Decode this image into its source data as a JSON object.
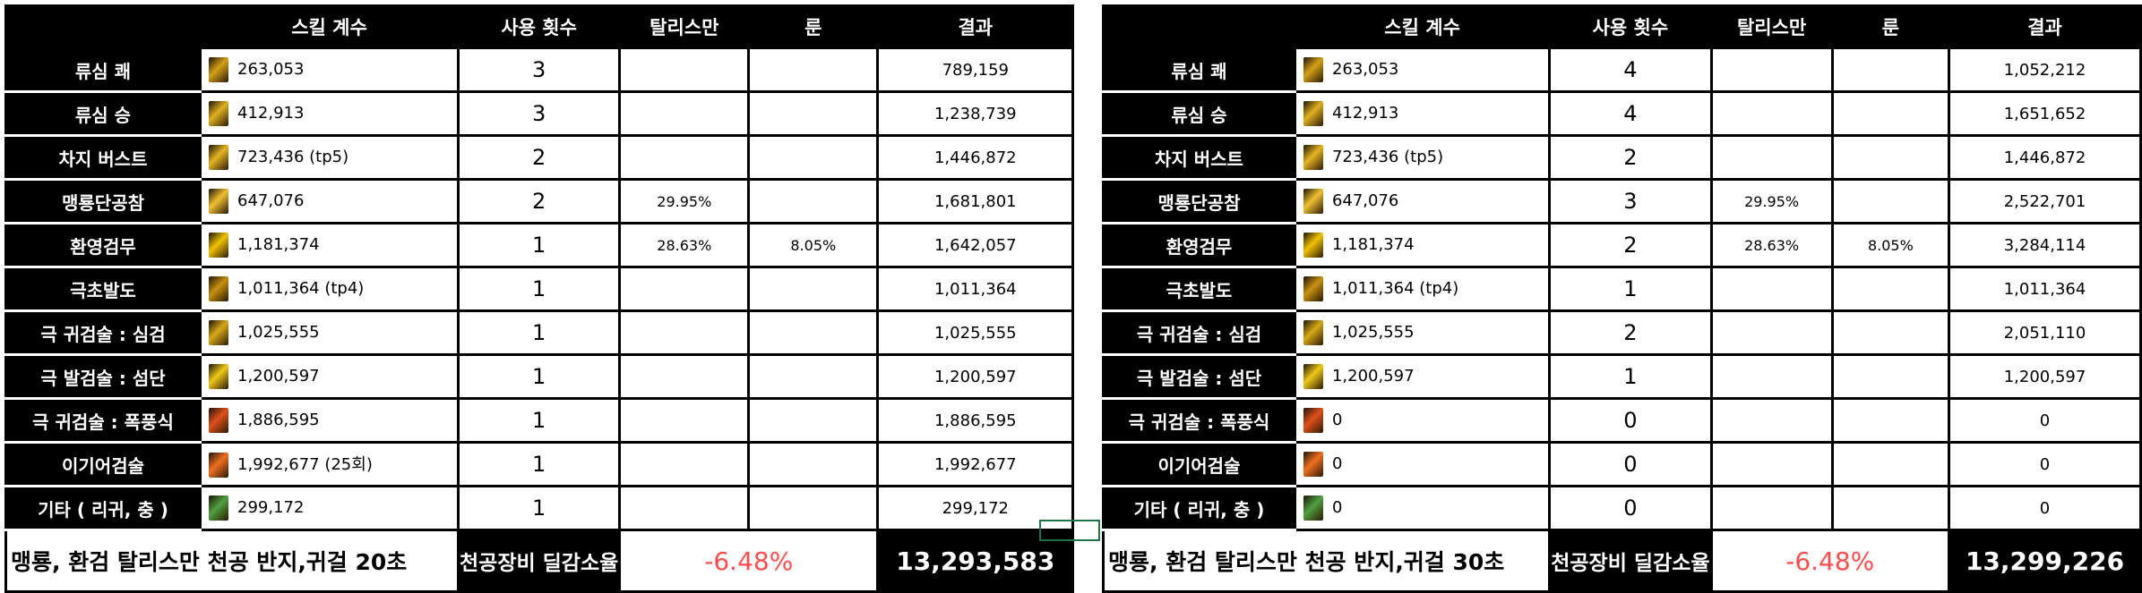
{
  "headers": [
    "",
    "스킬 계수",
    "사용 횟수",
    "탈리스만",
    "룬",
    "결과"
  ],
  "icons": [
    {
      "name": "ryusim-kwae-icon",
      "color": "#d4a017"
    },
    {
      "name": "ryusim-seung-icon",
      "color": "#e0b020"
    },
    {
      "name": "charge-burst-icon",
      "color": "#e6b422"
    },
    {
      "name": "maengryong-icon",
      "color": "#f0c030"
    },
    {
      "name": "hwanyeong-icon",
      "color": "#f2c200"
    },
    {
      "name": "geukcho-icon",
      "color": "#c89010"
    },
    {
      "name": "simgeom-icon",
      "color": "#d8a818"
    },
    {
      "name": "seomdan-icon",
      "color": "#f0c818"
    },
    {
      "name": "pokpungsik-icon",
      "color": "#e0501a"
    },
    {
      "name": "igieo-icon",
      "color": "#f07020"
    },
    {
      "name": "etc-icon",
      "color": "#50a040"
    }
  ],
  "tables": [
    {
      "rows": [
        {
          "label": "류심 쾌",
          "coef": "263,053",
          "count": "3",
          "talisman": "",
          "rune": "",
          "result": "789,159"
        },
        {
          "label": "류심 승",
          "coef": "412,913",
          "count": "3",
          "talisman": "",
          "rune": "",
          "result": "1,238,739"
        },
        {
          "label": "차지 버스트",
          "coef": "723,436 (tp5)",
          "count": "2",
          "talisman": "",
          "rune": "",
          "result": "1,446,872"
        },
        {
          "label": "맹룡단공참",
          "coef": "647,076",
          "count": "2",
          "talisman": "29.95%",
          "rune": "",
          "result": "1,681,801"
        },
        {
          "label": "환영검무",
          "coef": "1,181,374",
          "count": "1",
          "talisman": "28.63%",
          "rune": "8.05%",
          "result": "1,642,057"
        },
        {
          "label": "극초발도",
          "coef": "1,011,364 (tp4)",
          "count": "1",
          "talisman": "",
          "rune": "",
          "result": "1,011,364"
        },
        {
          "label": "극 귀검술 : 심검",
          "coef": "1,025,555",
          "count": "1",
          "talisman": "",
          "rune": "",
          "result": "1,025,555"
        },
        {
          "label": "극 발검술 : 섬단",
          "coef": "1,200,597",
          "count": "1",
          "talisman": "",
          "rune": "",
          "result": "1,200,597"
        },
        {
          "label": "극 귀검술 : 폭풍식",
          "coef": "1,886,595",
          "count": "1",
          "talisman": "",
          "rune": "",
          "result": "1,886,595"
        },
        {
          "label": "이기어검술",
          "coef": "1,992,677 (25회)",
          "count": "1",
          "talisman": "",
          "rune": "",
          "result": "1,992,677"
        },
        {
          "label": "기타 ( 리귀, 충 )",
          "coef": "299,172",
          "count": "1",
          "talisman": "",
          "rune": "",
          "result": "299,172"
        }
      ],
      "footer": {
        "note": "맹룡, 환검 탈리스만 천공 반지,귀걸 20초",
        "label": "천공장비 딜감소율",
        "reduction": "-6.48%",
        "total": "13,293,583"
      }
    },
    {
      "rows": [
        {
          "label": "류심 쾌",
          "coef": "263,053",
          "count": "4",
          "talisman": "",
          "rune": "",
          "result": "1,052,212"
        },
        {
          "label": "류심 승",
          "coef": "412,913",
          "count": "4",
          "talisman": "",
          "rune": "",
          "result": "1,651,652"
        },
        {
          "label": "차지 버스트",
          "coef": "723,436 (tp5)",
          "count": "2",
          "talisman": "",
          "rune": "",
          "result": "1,446,872"
        },
        {
          "label": "맹룡단공참",
          "coef": "647,076",
          "count": "3",
          "talisman": "29.95%",
          "rune": "",
          "result": "2,522,701"
        },
        {
          "label": "환영검무",
          "coef": "1,181,374",
          "count": "2",
          "talisman": "28.63%",
          "rune": "8.05%",
          "result": "3,284,114"
        },
        {
          "label": "극초발도",
          "coef": "1,011,364 (tp4)",
          "count": "1",
          "talisman": "",
          "rune": "",
          "result": "1,011,364"
        },
        {
          "label": "극 귀검술 : 심검",
          "coef": "1,025,555",
          "count": "2",
          "talisman": "",
          "rune": "",
          "result": "2,051,110"
        },
        {
          "label": "극 발검술 : 섬단",
          "coef": "1,200,597",
          "count": "1",
          "talisman": "",
          "rune": "",
          "result": "1,200,597"
        },
        {
          "label": "극 귀검술 : 폭풍식",
          "coef": "0",
          "count": "0",
          "talisman": "",
          "rune": "",
          "result": "0"
        },
        {
          "label": "이기어검술",
          "coef": "0",
          "count": "0",
          "talisman": "",
          "rune": "",
          "result": "0"
        },
        {
          "label": "기타 ( 리귀, 충 )",
          "coef": "0",
          "count": "0",
          "talisman": "",
          "rune": "",
          "result": "0"
        }
      ],
      "footer": {
        "note": "맹룡, 환검 탈리스만 천공 반지,귀걸 30초",
        "label": "천공장비 딜감소율",
        "reduction": "-6.48%",
        "total": "13,299,226"
      }
    }
  ],
  "colors": {
    "header_bg": "#000000",
    "reduction_text": "#ff4d4d",
    "selection_border": "#217346"
  }
}
